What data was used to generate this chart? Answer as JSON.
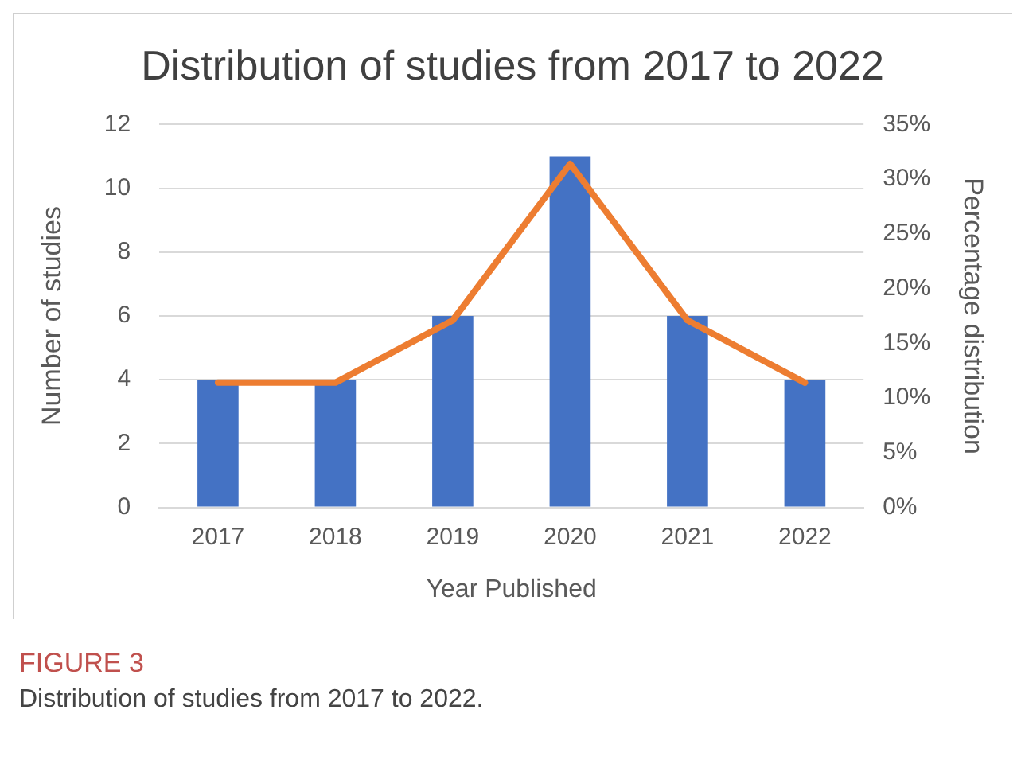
{
  "chart_data": {
    "type": "bar",
    "title": "Distribution of studies from 2017 to 2022",
    "xlabel": "Year Published",
    "ylabel": "Number of studies",
    "y2label": "Percentage distribution",
    "categories": [
      "2017",
      "2018",
      "2019",
      "2020",
      "2021",
      "2022"
    ],
    "series": [
      {
        "color": "#4472c4",
        "values": [
          4,
          4,
          6,
          11,
          6,
          4
        ]
      },
      {
        "type": "line",
        "axis": "y2",
        "color": "#ed7d31",
        "values": [
          11.4,
          11.4,
          17.1,
          31.4,
          17.1,
          11.4
        ]
      }
    ],
    "ylim": [
      0,
      12
    ],
    "yticks": [
      0,
      2,
      4,
      6,
      8,
      10,
      12
    ],
    "y2lim": [
      0,
      35
    ],
    "y2ticks": [
      {
        "value": 0,
        "label": "0%"
      },
      {
        "value": 5,
        "label": "5%"
      },
      {
        "value": 10,
        "label": "10%"
      },
      {
        "value": 15,
        "label": "15%"
      },
      {
        "value": 20,
        "label": "20%"
      },
      {
        "value": 25,
        "label": "25%"
      },
      {
        "value": 30,
        "label": "30%"
      },
      {
        "value": 35,
        "label": "35%"
      }
    ],
    "grid": "y",
    "legend": false,
    "marker": "none",
    "annotations": [
      "FIGURE 3",
      "Distribution of studies from 2017 to 2022."
    ]
  }
}
